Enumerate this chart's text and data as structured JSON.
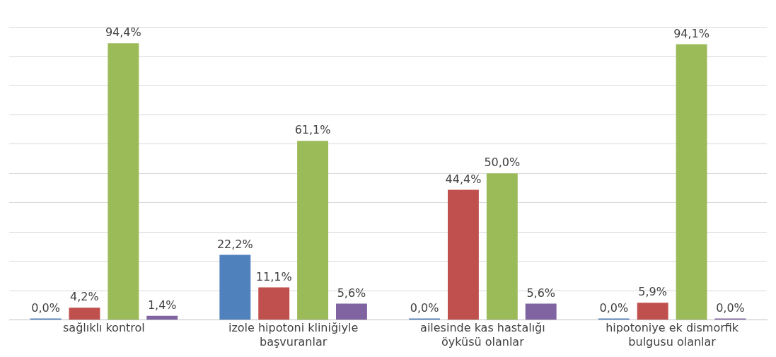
{
  "chart_data": {
    "type": "bar",
    "categories": [
      "sağlıklı kontrol",
      "izole hipotoni kliniğiyle başvuranlar",
      "ailesinde kas hastalığı öyküsü olanlar",
      "hipotoniye ek dismorfik bulgusu olanlar"
    ],
    "series": [
      {
        "color": "#4f81bd",
        "values": [
          0,
          22.2,
          0,
          0
        ],
        "value_labels": [
          "0,0%",
          "22,2%",
          "0,0%",
          "0,0%"
        ]
      },
      {
        "color": "#c0504d",
        "values": [
          4.2,
          11.1,
          44.4,
          5.9
        ],
        "value_labels": [
          "4,2%",
          "11,1%",
          "44,4%",
          "5,9%"
        ]
      },
      {
        "color": "#9bbb59",
        "values": [
          94.4,
          61.1,
          50,
          94.1
        ],
        "value_labels": [
          "94,4%",
          "61,1%",
          "50,0%",
          "94,1%"
        ]
      },
      {
        "color": "#8064a2",
        "values": [
          1.4,
          5.6,
          5.6,
          0
        ],
        "value_labels": [
          "1,4%",
          "5,6%",
          "5,6%",
          "0,0%"
        ]
      }
    ],
    "ylim": [
      0,
      100
    ],
    "yticks": [
      {
        "value": 0,
        "label": null
      },
      {
        "value": 10,
        "label": null
      },
      {
        "value": 20,
        "label": null
      },
      {
        "value": 30,
        "label": null
      },
      {
        "value": 40,
        "label": null
      },
      {
        "value": 50,
        "label": null
      },
      {
        "value": 60,
        "label": null
      },
      {
        "value": 70,
        "label": null
      },
      {
        "value": 80,
        "label": null
      },
      {
        "value": 90,
        "label": null
      },
      {
        "value": 100,
        "label": null
      }
    ],
    "grid": "y",
    "legend": false,
    "tick_labels": "x"
  }
}
